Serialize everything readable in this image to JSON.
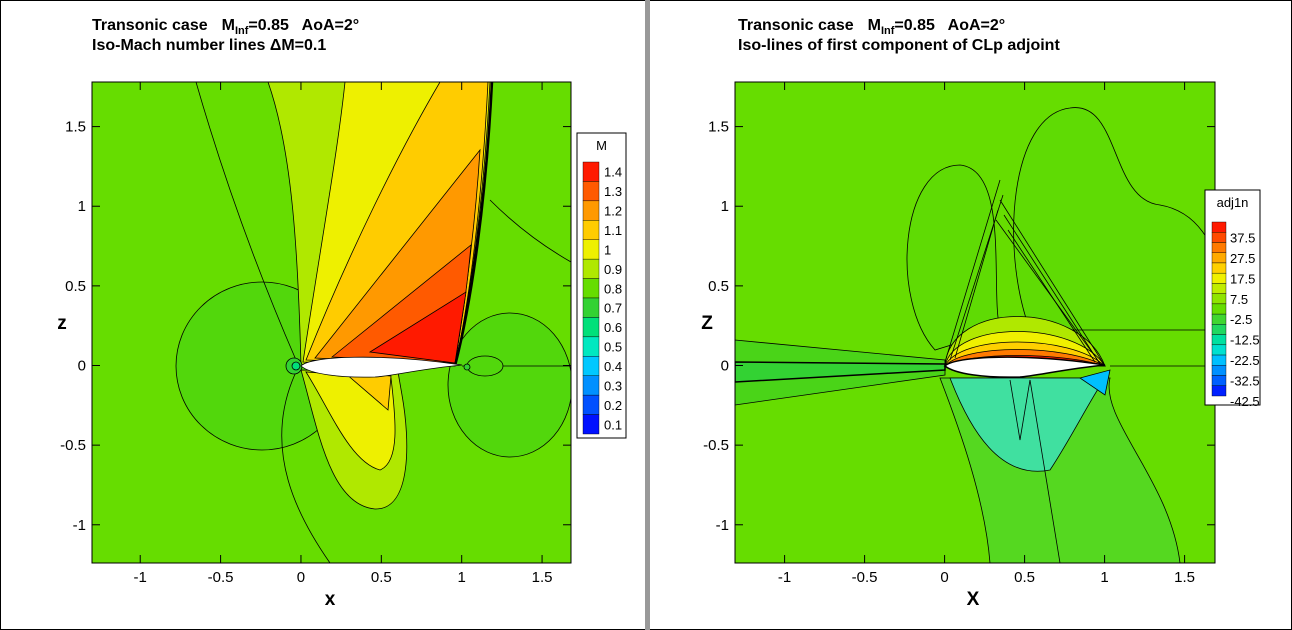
{
  "chart_data": [
    {
      "type": "contour",
      "title": {
        "lead": "Transonic case",
        "symbol": "M",
        "subscript": "Inf",
        "tail": "=0.85   AoA=2°"
      },
      "subtitle": "Iso-Mach number lines ΔM=0.1",
      "x_label": "x",
      "y_label": "z",
      "xlim": [
        -1.3,
        1.68
      ],
      "ylim": [
        -1.24,
        1.78
      ],
      "xticks": [
        -1,
        -0.5,
        0,
        0.5,
        1,
        1.5
      ],
      "yticks": [
        -1,
        -0.5,
        0,
        0.5,
        1,
        1.5
      ],
      "legend": {
        "title": "M",
        "levels": [
          1.4,
          1.3,
          1.2,
          1.1,
          1,
          0.9,
          0.8,
          0.7,
          0.6,
          0.5,
          0.4,
          0.3,
          0.2,
          0.1
        ],
        "colors": [
          "#ff1a00",
          "#ff5a00",
          "#ff9900",
          "#ffcc00",
          "#eef000",
          "#b0e800",
          "#66dd00",
          "#33d233",
          "#00e07a",
          "#00e8c0",
          "#00c8ff",
          "#0090ff",
          "#0050ff",
          "#0010ff"
        ]
      }
    },
    {
      "type": "contour",
      "title": {
        "lead": "Transonic case",
        "symbol": "M",
        "subscript": "Inf",
        "tail": "=0.85   AoA=2°"
      },
      "subtitle": "Iso-lines of first component of CLp adjoint",
      "x_label": "X",
      "y_label": "Z",
      "xlim": [
        -1.31,
        1.69
      ],
      "ylim": [
        -1.24,
        1.78
      ],
      "xticks": [
        -1,
        -0.5,
        0,
        0.5,
        1,
        1.5
      ],
      "yticks": [
        -1,
        -0.5,
        0,
        0.5,
        1,
        1.5
      ],
      "legend": {
        "title": "adj1n",
        "levels": [
          37.5,
          27.5,
          17.5,
          7.5,
          -2.5,
          -12.5,
          -22.5,
          -32.5,
          -42.5
        ],
        "colors": [
          "#ff1a00",
          "#ff4a00",
          "#ff7a00",
          "#ffaa00",
          "#ffd000",
          "#f0f000",
          "#c0ec00",
          "#90e400",
          "#66dd00",
          "#40d630",
          "#20d860",
          "#00e0a0",
          "#00e0d0",
          "#00c0ff",
          "#0090ff",
          "#0060ff",
          "#0020ff"
        ]
      }
    }
  ]
}
